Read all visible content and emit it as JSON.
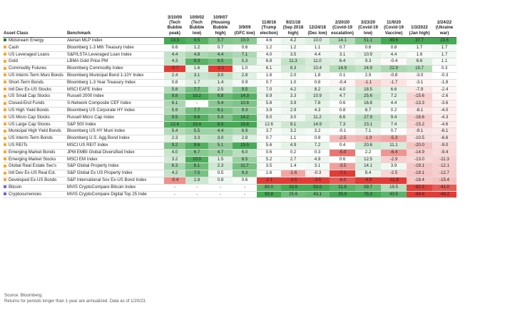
{
  "chart_data": {
    "type": "table",
    "headers": [
      "Asset Class",
      "Benchmark",
      "3/10/00 (Tech Bubble peak)",
      "10/9/02 (Tech Bubble low)",
      "10/9/07 (Housing Bubble high)",
      "3/9/09 (GFC low)",
      "11/8/16 (Trump election)",
      "9/21/18 (Sep 2018 high)",
      "12/24/18 (Dec low)",
      "2/20/20 (Covid-19 escalation)",
      "3/23/20 (Covid-19 low)",
      "11/9/20 (Covid-19 Vaccine)",
      "1/3/2022 (Jan high)",
      "2/24/22 (Ukraine war)"
    ],
    "rows": [
      {
        "asset": "Midstream Energy",
        "benchmark": "Alerian MLP Index",
        "values": [
          "13.3",
          "9.5",
          "5.7",
          "10.0",
          "4.6",
          "4.2",
          "10.0",
          "14.1",
          "51.1",
          "49.6",
          "37.7",
          "23.6"
        ]
      },
      {
        "asset": "Cash",
        "benchmark": "Bloomberg 1-3 Mth Treasury Index",
        "values": [
          "0.6",
          "1.2",
          "0.7",
          "0.6",
          "1.2",
          "1.2",
          "1.1",
          "0.7",
          "0.6",
          "0.8",
          "1.7",
          "1.7"
        ]
      },
      {
        "asset": "US Leveraged Loans",
        "benchmark": "S&P/LSTA Leveraged Loan Index",
        "values": [
          "4.4",
          "4.8",
          "4.4",
          "7.1",
          "4.0",
          "3.5",
          "4.4",
          "3.1",
          "10.9",
          "4.4",
          "1.6",
          "1.7"
        ]
      },
      {
        "asset": "Gold",
        "benchmark": "LBMA Gold Price PM",
        "values": [
          "4.3",
          "9.3",
          "6.5",
          "5.3",
          "6.8",
          "11.3",
          "11.0",
          "6.4",
          "9.3",
          "-0.4",
          "6.6",
          "1.1"
        ]
      },
      {
        "asset": "Commodity Futures",
        "benchmark": "Bloomberg Commodity Index",
        "values": [
          "-0.7",
          "1.6",
          "-2.1",
          "1.0",
          "6.1",
          "8.3",
          "10.4",
          "14.9",
          "24.9",
          "22.9",
          "15.7",
          "0.3"
        ]
      },
      {
        "asset": "US Interm-Term Muni Bonds",
        "benchmark": "Bloomberg Municipal Bond 1-10Y Index",
        "values": [
          "2.4",
          "3.1",
          "3.0",
          "2.8",
          "1.6",
          "2.0",
          "1.8",
          "0.1",
          "2.9",
          "-0.8",
          "-3.0",
          "-0.3"
        ]
      },
      {
        "asset": "Short-Term Bonds",
        "benchmark": "Bloomberg 1-3 Year Treasury Index",
        "values": [
          "0.8",
          "1.7",
          "1.4",
          "0.9",
          "0.7",
          "1.0",
          "0.8",
          "-0.4",
          "-1.1",
          "-1.7",
          "-3.1",
          "-1.8"
        ]
      },
      {
        "asset": "Intl Dev Ex-US Stocks",
        "benchmark": "MSCI EAFE Index",
        "values": [
          "5.6",
          "7.7",
          "2.5",
          "9.5",
          "7.0",
          "4.2",
          "8.2",
          "4.0",
          "18.5",
          "6.6",
          "-7.9",
          "-2.4"
        ]
      },
      {
        "asset": "US Small Cap Stocks",
        "benchmark": "Russell 2000 Index",
        "values": [
          "9.8",
          "10.2",
          "6.8",
          "14.3",
          "8.9",
          "3.3",
          "10.9",
          "4.7",
          "25.6",
          "7.2",
          "-15.6",
          "-2.6"
        ]
      },
      {
        "asset": "Closed-End Funds",
        "benchmark": "S-Network Composite CEF Index",
        "values": [
          "6.1",
          "-",
          "5.4",
          "10.8",
          "5.8",
          "3.9",
          "7.8",
          "0.6",
          "16.8",
          "4.4",
          "-13.3",
          "-3.6"
        ]
      },
      {
        "asset": "US High Yield Bonds",
        "benchmark": "Bloomberg US Corporate HY Index",
        "values": [
          "5.9",
          "7.7",
          "6.1",
          "9.3",
          "3.9",
          "2.9",
          "4.3",
          "0.8",
          "8.7",
          "0.2",
          "-8.1",
          "-4.0"
        ]
      },
      {
        "asset": "US Micro Cap Stocks",
        "benchmark": "Russell Micro Cap Index",
        "values": [
          "9.5",
          "9.6",
          "5.9",
          "14.2",
          "9.0",
          "3.0",
          "11.2",
          "6.6",
          "27.9",
          "9.4",
          "-16.6",
          "-4.3"
        ]
      },
      {
        "asset": "US Large Cap Stocks",
        "benchmark": "S&P 500 Index",
        "values": [
          "12.4",
          "10.4",
          "8.5",
          "15.8",
          "12.6",
          "9.1",
          "14.9",
          "7.3",
          "23.1",
          "7.4",
          "-15.2",
          "-4.6"
        ]
      },
      {
        "asset": "Municipal High Yield Bonds",
        "benchmark": "Bloomberg US HY Muni Index",
        "values": [
          "5.4",
          "5.5",
          "4.4",
          "6.9",
          "3.7",
          "3.2",
          "3.2",
          "-0.1",
          "7.1",
          "0.7",
          "-9.1",
          "-6.1"
        ]
      },
      {
        "asset": "US Interm-Term Bonds",
        "benchmark": "Bloomberg U.S. Agg Bond Index",
        "values": [
          "2.3",
          "3.3",
          "3.0",
          "2.8",
          "0.7",
          "1.1",
          "0.8",
          "-2.5",
          "-1.9",
          "-5.3",
          "-10.5",
          "-6.6"
        ]
      },
      {
        "asset": "US REITs",
        "benchmark": "MSCI US REIT Index",
        "values": [
          "9.2",
          "9.6",
          "5.1",
          "15.5",
          "5.6",
          "4.9",
          "7.2",
          "0.4",
          "20.6",
          "11.1",
          "-20.0",
          "-9.0"
        ]
      },
      {
        "asset": "Emerging Market Bonds",
        "benchmark": "JPM EMBI Global Diversified Index",
        "values": [
          "4.0",
          "6.7",
          "4.7",
          "6.0",
          "0.6",
          "0.2",
          "0.3",
          "-5.0",
          "2.2",
          "-6.4",
          "-14.9",
          "-9.4"
        ]
      },
      {
        "asset": "Emerging Market Stocks",
        "benchmark": "MSCI EM Index",
        "values": [
          "3.2",
          "10.0",
          "1.5",
          "8.5",
          "5.2",
          "2.7",
          "4.9",
          "0.6",
          "12.5",
          "-2.9",
          "-13.0",
          "-11.3"
        ]
      },
      {
        "asset": "Global Real Estate Sec's",
        "benchmark": "S&P Global Property Index",
        "values": [
          "6.3",
          "8.1",
          "2.3",
          "11.7",
          "3.5",
          "1.4",
          "3.1",
          "-3.5",
          "14.1",
          "3.9",
          "-19.1",
          "-12.1"
        ]
      },
      {
        "asset": "Intl Dev Ex-US Real Est.",
        "benchmark": "S&P Global Ex US Property Index",
        "values": [
          "4.2",
          "7.5",
          "0.5",
          "9.3",
          "1.6",
          "-1.6",
          "-0.3",
          "-7.1",
          "8.4",
          "-2.5",
          "-19.1",
          "-12.7"
        ]
      },
      {
        "asset": "Developed Ex-US Bonds",
        "benchmark": "S&P International Sov Ex-US Bond Index",
        "values": [
          "-0.4",
          "2.8",
          "0.8",
          "0.6",
          "-2.1",
          "-3.5",
          "-3.5",
          "-6.0",
          "-4.9",
          "-11.8",
          "-18.4",
          "-15.4"
        ]
      },
      {
        "asset": "Bitcoin",
        "benchmark": "MVIS CryptoCompare Bitcoin Index",
        "values": [
          "-",
          "-",
          "-",
          "-",
          "80.0",
          "33.9",
          "53.0",
          "31.8",
          "59.7",
          "19.5",
          "-62.3",
          "-41.0"
        ]
      },
      {
        "asset": "Cryptocurrencies",
        "benchmark": "MVIS CryptoCompare Digital Top 25 Inde",
        "values": [
          "-",
          "-",
          "-",
          "-",
          "93.8",
          "25.9",
          "43.1",
          "35.9",
          "75.3",
          "43.5",
          "-64.6",
          "-49.2"
        ]
      }
    ],
    "row_marker_colors": [
      "#2e7d32",
      "#f9a825",
      "#f9a825",
      "#f9a825",
      "#f9a825",
      "#f9a825",
      "#f9a825",
      "#f9a825",
      "#f9a825",
      "#f9a825",
      "#f9a825",
      "#f9a825",
      "#f9a825",
      "#f9a825",
      "#f9a825",
      "#f9a825",
      "#f9a825",
      "#f9a825",
      "#f9a825",
      "#f9a825",
      "#f9a825",
      "#7b61c9",
      "#7b61c9"
    ],
    "color_scale": {
      "high": "#3aa64a",
      "mid": "#ffffff",
      "low": "#e0322b"
    }
  },
  "notes": {
    "source": "Source: Bloomberg.",
    "footnote": "Returns for periods longer than 1 year are annualized. Data as of 1/20/23."
  }
}
